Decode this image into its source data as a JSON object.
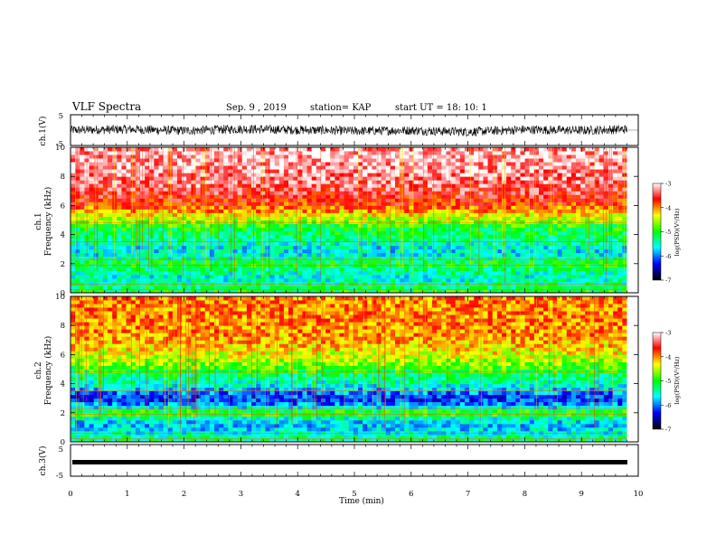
{
  "header": {
    "title": "VLF Spectra",
    "date": "Sep. 9 , 2019",
    "station": "station= KAP",
    "start": "start UT = 18: 10: 1"
  },
  "panels": {
    "ch1v": {
      "ylabel": "ch.1(V)",
      "ticks": [
        "5",
        "-5"
      ]
    },
    "spec1": {
      "ylabel": "ch.1\nFrequency (kHz)",
      "ticks": [
        "10",
        "8",
        "6",
        "4",
        "2",
        "0"
      ]
    },
    "spec2": {
      "ylabel": "ch.2\nFrequency (kHz)",
      "ticks": [
        "10",
        "8",
        "6",
        "4",
        "2",
        "0"
      ]
    },
    "ch3v": {
      "ylabel": "ch.3(V)",
      "ticks": [
        "5",
        "-5"
      ]
    }
  },
  "xaxis": {
    "label": "Time (min)",
    "ticks": [
      "0",
      "1",
      "2",
      "3",
      "4",
      "5",
      "6",
      "7",
      "8",
      "9",
      "10"
    ]
  },
  "colorbar": {
    "label": "log(PSD)(V²/Hz)",
    "ticks": [
      "-3",
      "-4",
      "-5",
      "-6",
      "-7"
    ],
    "colors": [
      "#ffffff",
      "#ff0000",
      "#ffff00",
      "#00ff00",
      "#00ffff",
      "#0000ff",
      "#000000"
    ]
  },
  "chart_data": [
    {
      "type": "line",
      "title": "ch.1(V)",
      "ylabel": "ch.1(V)",
      "xlim": [
        0,
        10
      ],
      "ylim": [
        -5,
        5
      ],
      "series": [
        {
          "x": [
            0,
            1,
            2,
            3,
            4,
            5,
            6,
            7,
            8,
            9,
            9.8
          ],
          "values": [
            0,
            0.3,
            -0.2,
            0.4,
            0.1,
            -0.3,
            -0.1,
            -0.6,
            0.2,
            -0.1,
            0.3
          ]
        }
      ]
    },
    {
      "type": "heatmap",
      "ylabel": "Frequency (kHz)",
      "xlabel": "Time (min)",
      "xlim": [
        0,
        10
      ],
      "ylim": [
        0,
        10
      ],
      "freq_bands_khz": [
        0,
        0.5,
        1,
        1.5,
        2,
        2.5,
        3,
        3.5,
        4,
        4.5,
        5,
        6,
        7,
        8,
        9,
        10
      ],
      "log_psd": [
        -5.0,
        -5.3,
        -5.6,
        -5.4,
        -5.0,
        -5.6,
        -5.7,
        -5.4,
        -5.2,
        -5.1,
        -4.6,
        -3.8,
        -3.5,
        -3.3,
        -3.2,
        -3.2
      ]
    },
    {
      "type": "heatmap",
      "ylabel": "Frequency (kHz)",
      "xlabel": "Time (min)",
      "xlim": [
        0,
        10
      ],
      "ylim": [
        0,
        10
      ],
      "freq_bands_khz": [
        0,
        0.5,
        1,
        1.5,
        2,
        2.5,
        3,
        3.5,
        4,
        4.5,
        5,
        6,
        7,
        8,
        9,
        10
      ],
      "log_psd": [
        -5.2,
        -5.5,
        -5.8,
        -5.7,
        -4.8,
        -5.9,
        -6.3,
        -5.9,
        -5.5,
        -5.3,
        -4.9,
        -4.4,
        -4.1,
        -4.0,
        -4.0,
        -4.0
      ]
    },
    {
      "type": "line",
      "title": "ch.3(V)",
      "ylabel": "ch.3(V)",
      "xlim": [
        0,
        10
      ],
      "ylim": [
        -5,
        5
      ],
      "series": [
        {
          "x": [
            0,
            9.8
          ],
          "values": [
            -1.5,
            -1.5
          ]
        }
      ]
    }
  ]
}
